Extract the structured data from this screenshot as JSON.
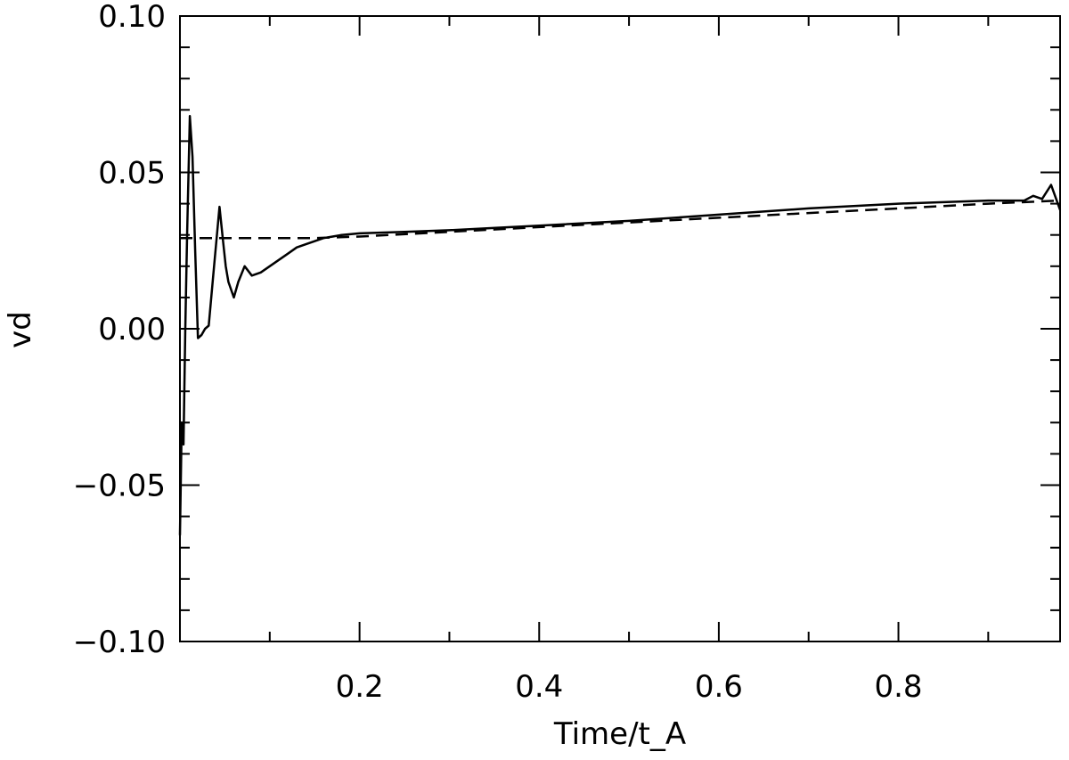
{
  "chart_data": {
    "type": "line",
    "title": "",
    "xlabel": "Time/t_A",
    "ylabel": "vd",
    "xlim": [
      0.0,
      0.98
    ],
    "ylim": [
      -0.1,
      0.1
    ],
    "x_ticks": [
      0.2,
      0.4,
      0.6,
      0.8
    ],
    "x_tick_labels": [
      "0.2",
      "0.4",
      "0.6",
      "0.8"
    ],
    "x_minor_ticks": [
      0.1,
      0.3,
      0.5,
      0.7,
      0.9
    ],
    "y_ticks": [
      -0.1,
      -0.05,
      0.0,
      0.05,
      0.1
    ],
    "y_tick_labels": [
      "−0.10",
      "−0.05",
      "0.00",
      "0.05",
      "0.10"
    ],
    "y_minor_ticks": [
      -0.09,
      -0.08,
      -0.07,
      -0.06,
      -0.04,
      -0.03,
      -0.02,
      -0.01,
      0.01,
      0.02,
      0.03,
      0.04,
      0.06,
      0.07,
      0.08,
      0.09
    ],
    "grid": false,
    "series": [
      {
        "style": "solid",
        "color": "#000000",
        "x": [
          0.0,
          0.002,
          0.004,
          0.006,
          0.008,
          0.011,
          0.014,
          0.017,
          0.02,
          0.024,
          0.028,
          0.032,
          0.038,
          0.044,
          0.048,
          0.051,
          0.054,
          0.06,
          0.065,
          0.072,
          0.08,
          0.09,
          0.1,
          0.11,
          0.12,
          0.13,
          0.14,
          0.15,
          0.16,
          0.17,
          0.18,
          0.2,
          0.25,
          0.3,
          0.4,
          0.5,
          0.6,
          0.7,
          0.8,
          0.9,
          0.94,
          0.95,
          0.96,
          0.97,
          0.98
        ],
        "y": [
          -0.066,
          -0.03,
          -0.037,
          0.0,
          0.031,
          0.068,
          0.055,
          0.025,
          -0.003,
          -0.002,
          0.0,
          0.001,
          0.02,
          0.039,
          0.028,
          0.02,
          0.015,
          0.01,
          0.015,
          0.02,
          0.017,
          0.018,
          0.02,
          0.022,
          0.024,
          0.026,
          0.027,
          0.028,
          0.029,
          0.0295,
          0.03,
          0.0305,
          0.031,
          0.0315,
          0.033,
          0.0345,
          0.0365,
          0.0385,
          0.04,
          0.041,
          0.041,
          0.0425,
          0.0415,
          0.046,
          0.038
        ]
      },
      {
        "style": "dashed",
        "color": "#000000",
        "x": [
          0.0,
          0.05,
          0.1,
          0.15,
          0.2,
          0.3,
          0.4,
          0.5,
          0.6,
          0.7,
          0.8,
          0.9,
          0.98
        ],
        "y": [
          0.029,
          0.029,
          0.029,
          0.029,
          0.0295,
          0.031,
          0.0325,
          0.034,
          0.0355,
          0.037,
          0.0385,
          0.04,
          0.041
        ]
      }
    ]
  }
}
